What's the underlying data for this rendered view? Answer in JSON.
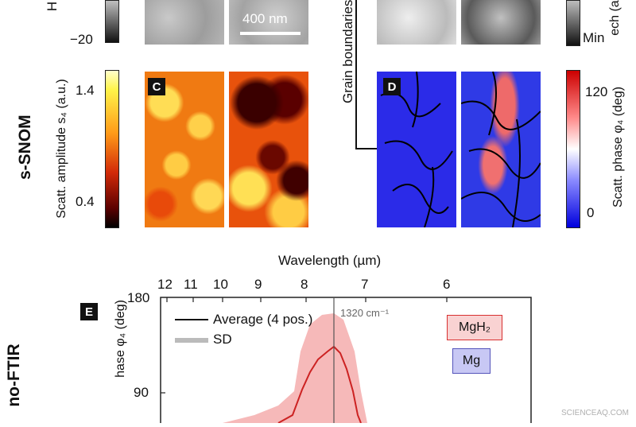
{
  "top_row": {
    "left_axis_partial": "H",
    "left_tick_bottom": "−20",
    "scale_bar": "400 nm",
    "right_axis_partial": "ech (a.u.)",
    "right_min": "Min"
  },
  "arrow_label": "Grain boundaries",
  "snom": {
    "row_label": "s-SNOM",
    "amp_axis": "Scatt. amplitude s₄ (a.u.)",
    "amp_ticks": [
      "1.4",
      "0.4"
    ],
    "phase_axis": "Scatt. phase φ₄ (deg)",
    "phase_ticks": [
      "120",
      "0"
    ],
    "panel_c": "C",
    "panel_d": "D"
  },
  "ftir": {
    "row_label": "no-FTIR",
    "panel_e": "E",
    "top_axis_label": "Wavelength (µm)",
    "top_ticks": [
      "12",
      "11",
      "10",
      "9",
      "8",
      "7",
      "6"
    ],
    "y_axis_label": "hase φ₄ (deg)",
    "y_ticks": [
      "180",
      "90"
    ],
    "marker_label": "1320 cm⁻¹",
    "legend_avg": "Average (4 pos.)",
    "legend_sd": "SD",
    "label_mgh2": "MgH₂",
    "label_mg": "Mg",
    "colors": {
      "avg": "#cc2222",
      "sd": "#f4b4b4",
      "mgh2_bg": "#f9d2d2",
      "mgh2_border": "#d83030",
      "mg_bg": "#c8c8f4",
      "mg_border": "#5555bb"
    }
  },
  "watermark": "SCIENCEAQ.COM"
}
